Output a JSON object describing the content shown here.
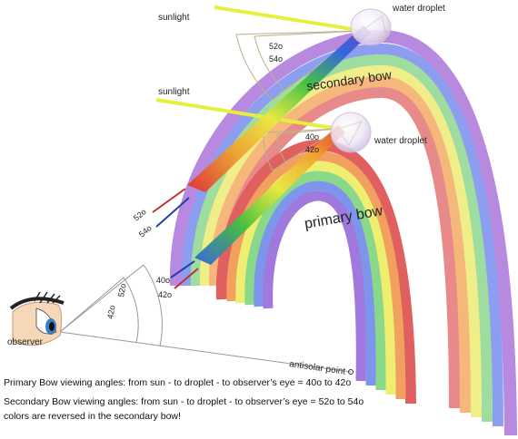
{
  "labels": {
    "sunlight_top": "sunlight",
    "sunlight_mid": "sunlight",
    "water_droplet_top": "water droplet",
    "water_droplet_mid": "water droplet",
    "secondary_bow": "secondary bow",
    "primary_bow": "primary bow",
    "observer": "observer",
    "antisolar_point": "antisolar point"
  },
  "angles": {
    "top_52": "52o",
    "top_54": "54o",
    "mid_40": "40o",
    "mid_42": "42o",
    "left_52": "52o",
    "left_54": "54o",
    "low_40": "40o",
    "low_42": "42o",
    "eye_52": "52o",
    "eye_42": "42o"
  },
  "captions": {
    "primary": "Primary Bow viewing angles: from sun - to droplet - to observer’s eye = 40o to 42o",
    "secondary": "Secondary Bow viewing angles: from sun - to droplet - to observer’s eye = 52o to 54o",
    "note": "colors are reversed in the secondary bow!"
  },
  "colors": {
    "red": "#e05a5a",
    "orange": "#f0a050",
    "yellow": "#eeee66",
    "green": "#7ed87e",
    "blue": "#6a8ae8",
    "violet": "#9a6adc",
    "sunlight": "#e8f040"
  }
}
